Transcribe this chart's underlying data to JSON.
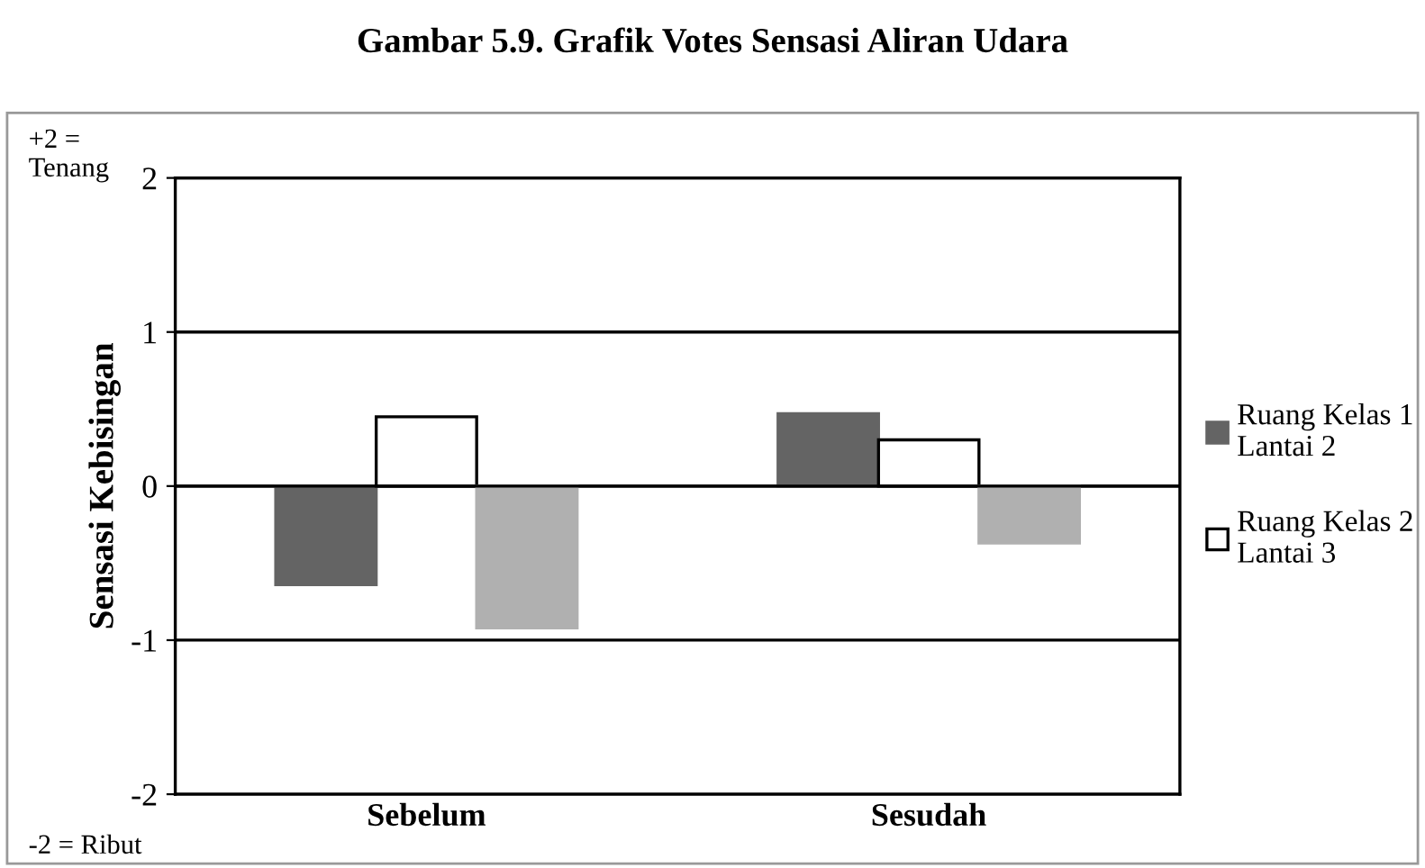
{
  "chart_data": {
    "type": "bar",
    "title": "Gambar 5.9. Grafik Votes Sensasi Aliran Udara",
    "ylabel": "Sensasi Kebisingan",
    "categories": [
      "Sebelum",
      "Sesudah"
    ],
    "series": [
      {
        "name": "Ruang Kelas 1\nLantai 2",
        "color": "#646464",
        "values": [
          -0.64,
          0.47
        ]
      },
      {
        "name": "Ruang Kelas 2\nLantai 3",
        "color": "#ffffff",
        "values": [
          0.45,
          0.3
        ]
      },
      {
        "color": "#b0b0b0",
        "values": [
          -0.92,
          -0.37
        ]
      }
    ],
    "ylim": [
      -2,
      2
    ],
    "yticks": [
      -2,
      -1,
      0,
      1,
      2
    ],
    "grid": "y",
    "legend": "right",
    "annotations": [
      "+2 =\nTenang",
      "-2 = Ribut"
    ]
  }
}
